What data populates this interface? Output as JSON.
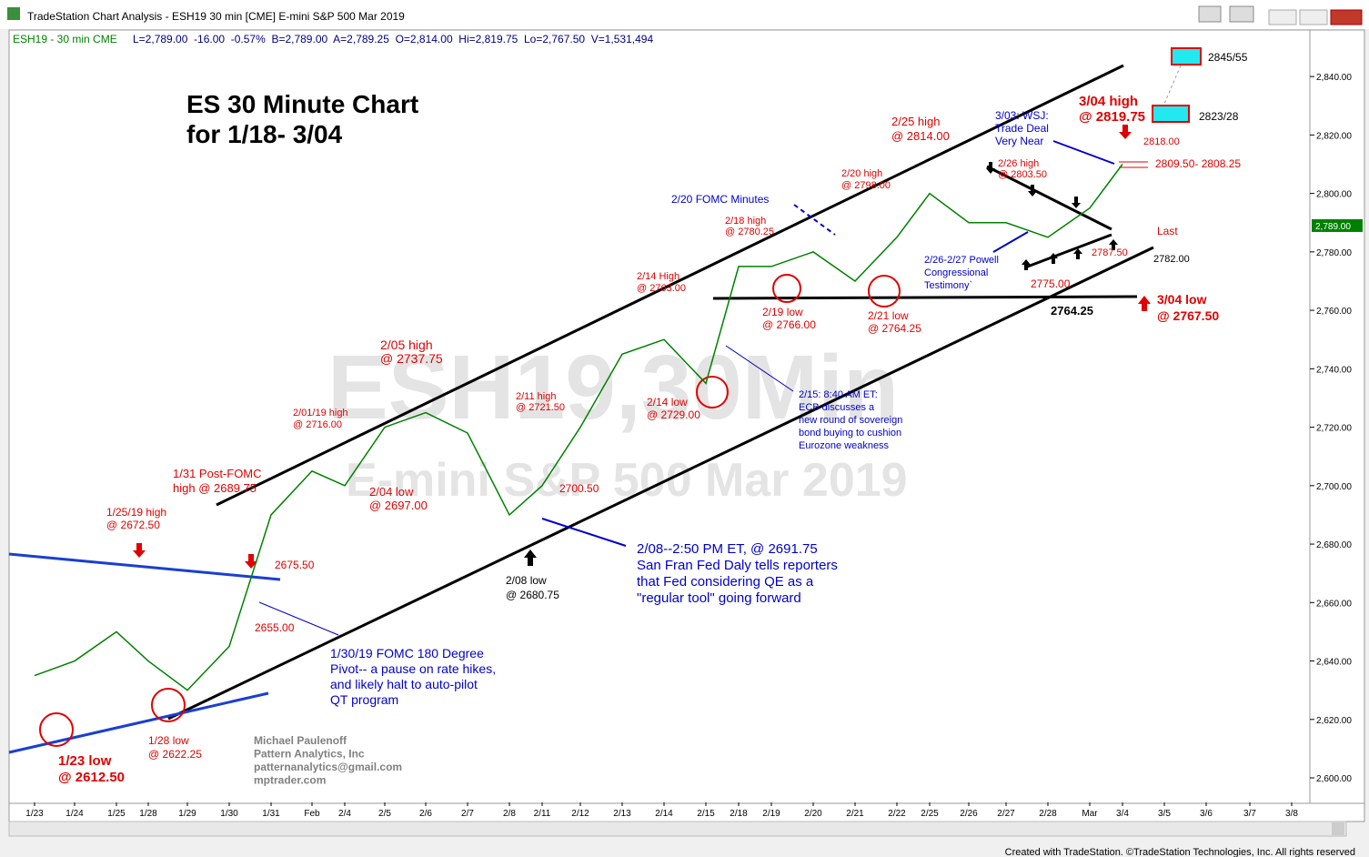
{
  "window_title": "TradeStation Chart Analysis - ESH19 30 min [CME] E-mini S&P 500 Mar 2019",
  "status_symbol": "ESH19 - 30 min  CME",
  "status_quote": "L=2,789.00  -16.00  -0.57%  B=2,789.00  A=2,789.25  O=2,814.00  Hi=2,819.75  Lo=2,767.50  V=1,531,494",
  "footer": "Created with TradeStation. ©TradeStation Technologies, Inc. All rights reserved",
  "chart_data": {
    "type": "line",
    "title": [
      "ES 30 Minute Chart",
      "for 1/18- 3/04"
    ],
    "watermark": [
      "ESH19,30Min",
      "E-mini S&P 500 Mar 2019"
    ],
    "categories": [
      "1/23",
      "1/24",
      "1/25",
      "1/28",
      "1/29",
      "1/30",
      "1/31",
      "Feb",
      "2/4",
      "2/5",
      "2/6",
      "2/7",
      "2/8",
      "2/11",
      "2/12",
      "2/13",
      "2/14",
      "2/15",
      "2/18",
      "2/19",
      "2/20",
      "2/21",
      "2/22",
      "2/25",
      "2/26",
      "2/27",
      "2/28",
      "Mar",
      "3/4",
      "3/5",
      "3/6",
      "3/7",
      "3/8"
    ],
    "series": [
      {
        "name": "ESH19",
        "color": "#008000",
        "values": [
          2635,
          2640,
          2650,
          2640,
          2630,
          2645,
          2690,
          2705,
          2700,
          2720,
          2725,
          2718,
          2690,
          2700,
          2720,
          2745,
          2750,
          2735,
          2775,
          2775,
          2780,
          2770,
          2785,
          2800,
          2790,
          2790,
          2785,
          2795,
          2810,
          null,
          null,
          null,
          null
        ]
      }
    ],
    "last_value": 2789,
    "last_label": "2,789.00",
    "ylim": [
      2591.6,
      2855.3
    ],
    "yticks": [
      {
        "value": 2600,
        "label": "2,600.00"
      },
      {
        "value": 2620,
        "label": "2,620.00"
      },
      {
        "value": 2640,
        "label": "2,640.00"
      },
      {
        "value": 2660,
        "label": "2,660.00"
      },
      {
        "value": 2680,
        "label": "2,680.00"
      },
      {
        "value": 2700,
        "label": "2,700.00"
      },
      {
        "value": 2720,
        "label": "2,720.00"
      },
      {
        "value": 2740,
        "label": "2,740.00"
      },
      {
        "value": 2760,
        "label": "2,760.00"
      },
      {
        "value": 2780,
        "label": "2,780.00"
      },
      {
        "value": 2800,
        "label": "2,800.00"
      },
      {
        "value": 2820,
        "label": "2,820.00"
      },
      {
        "value": 2840,
        "label": "2,840.00"
      }
    ],
    "annotations": [
      {
        "color": "#e00000",
        "lines": [
          "1/25/19 high",
          "@ 2672.50"
        ]
      },
      {
        "color": "#e00000",
        "lines": [
          "1/31 Post-FOMC",
          "high @ 2689.75"
        ]
      },
      {
        "color": "#e00000",
        "lines": [
          "2/01/19 high",
          "@ 2716.00"
        ]
      },
      {
        "color": "#e00000",
        "lines": [
          "2/05 high",
          "@ 2737.75"
        ]
      },
      {
        "color": "#e00000",
        "lines": [
          "2/04 low",
          "@ 2697.00"
        ]
      },
      {
        "color": "#e00000",
        "lines": [
          "2675.50"
        ]
      },
      {
        "color": "#e00000",
        "lines": [
          "2655.00"
        ]
      },
      {
        "color": "#e00000",
        "lines": [
          "1/23 low",
          "@ 2612.50"
        ]
      },
      {
        "color": "#e00000",
        "lines": [
          "1/28 low",
          "@ 2622.25"
        ]
      },
      {
        "color": "#e00000",
        "lines": [
          "2/11 high",
          "@ 2721.50"
        ]
      },
      {
        "color": "#e00000",
        "lines": [
          "2700.50"
        ]
      },
      {
        "color": "#e00000",
        "lines": [
          "2/14 low",
          "@ 2729.00"
        ]
      },
      {
        "color": "#e00000",
        "lines": [
          "2/14 High",
          "@ 2763.00"
        ]
      },
      {
        "color": "#e00000",
        "lines": [
          "2/18 high",
          "@ 2780.25"
        ]
      },
      {
        "color": "#e00000",
        "lines": [
          "2/20 high",
          "@ 2798.00"
        ]
      },
      {
        "color": "#e00000",
        "lines": [
          "2/25 high",
          "@ 2814.00"
        ]
      },
      {
        "color": "#e00000",
        "lines": [
          "2/26 high",
          "@ 2803.50"
        ]
      },
      {
        "color": "#e00000",
        "lines": [
          "2/19 low",
          "@ 2766.00"
        ]
      },
      {
        "color": "#e00000",
        "lines": [
          "2/21 low",
          "@ 2764.25"
        ]
      },
      {
        "color": "#e00000",
        "lines": [
          "2775.00"
        ]
      },
      {
        "color": "#e00000",
        "lines": [
          "2787.50"
        ]
      },
      {
        "color": "#e00000",
        "lines": [
          "3/04 high",
          "@ 2819.75"
        ]
      },
      {
        "color": "#e00000",
        "lines": [
          "2818.00"
        ]
      },
      {
        "color": "#e00000",
        "lines": [
          "2809.50- 2808.25"
        ]
      },
      {
        "color": "#e00000",
        "lines": [
          "3/04 low",
          "@ 2767.50"
        ]
      },
      {
        "color": "#e00000",
        "lines": [
          "Last"
        ]
      },
      {
        "color": "#000000",
        "lines": [
          "2/08 low",
          "@ 2680.75"
        ]
      },
      {
        "color": "#000000",
        "lines": [
          "2764.25"
        ]
      },
      {
        "color": "#000000",
        "lines": [
          "2782.00"
        ]
      },
      {
        "color": "#000000",
        "lines": [
          "2845/55"
        ]
      },
      {
        "color": "#000000",
        "lines": [
          "2823/28"
        ]
      },
      {
        "color": "#0000cc",
        "lines": [
          "2/20 FOMC Minutes"
        ]
      },
      {
        "color": "#0000cc",
        "lines": [
          "3/03: WSJ:",
          "Trade Deal",
          "Very Near"
        ]
      },
      {
        "color": "#0000cc",
        "lines": [
          "2/26-2/27 Powell",
          "Congressional",
          "Testimony`"
        ]
      },
      {
        "color": "#0000cc",
        "lines": [
          "2/15: 8:40 AM ET:",
          "ECB discusses a",
          "new round of sovereign",
          "bond buying to cushion",
          "Eurozone weakness"
        ]
      },
      {
        "color": "#0000cc",
        "lines": [
          "2/08--2:50 PM ET, @ 2691.75",
          "San Fran Fed Daly tells reporters",
          "that Fed considering QE as a",
          "\"regular tool\" going forward"
        ]
      },
      {
        "color": "#0000cc",
        "lines": [
          "1/30/19 FOMC 180 Degree",
          "Pivot-- a pause on rate hikes,",
          "and likely halt to auto-pilot",
          "QT program"
        ]
      },
      {
        "color": "#808080",
        "lines": [
          "Michael Paulenoff",
          "Pattern Analytics, Inc",
          "patternanalytics@gmail.com",
          "mptrader.com"
        ]
      }
    ]
  }
}
